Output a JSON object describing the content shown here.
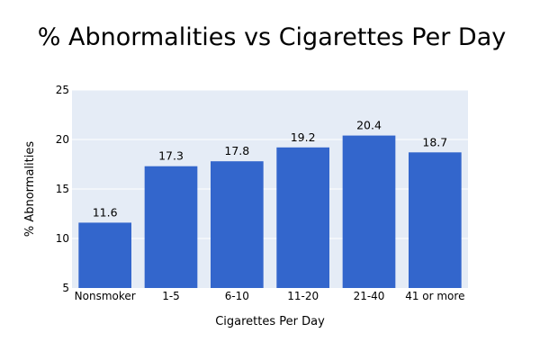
{
  "chart_data": {
    "type": "bar",
    "title": "% Abnormalities vs Cigarettes Per Day",
    "xlabel": "Cigarettes Per Day",
    "ylabel": "% Abnormalities",
    "categories": [
      "Nonsmoker",
      "1-5",
      "6-10",
      "11-20",
      "21-40",
      "41 or more"
    ],
    "values": [
      11.6,
      17.3,
      17.8,
      19.2,
      20.4,
      18.7
    ],
    "data_labels": [
      "11.6",
      "17.3",
      "17.8",
      "19.2",
      "20.4",
      "18.7"
    ],
    "ylim": [
      5,
      25
    ],
    "yticks": [
      5,
      10,
      15,
      20,
      25
    ],
    "grid": true,
    "legend": "none",
    "colors": {
      "bar": "#3366cc",
      "plot_background": "#e5ecf6",
      "grid": "#ffffff"
    }
  }
}
